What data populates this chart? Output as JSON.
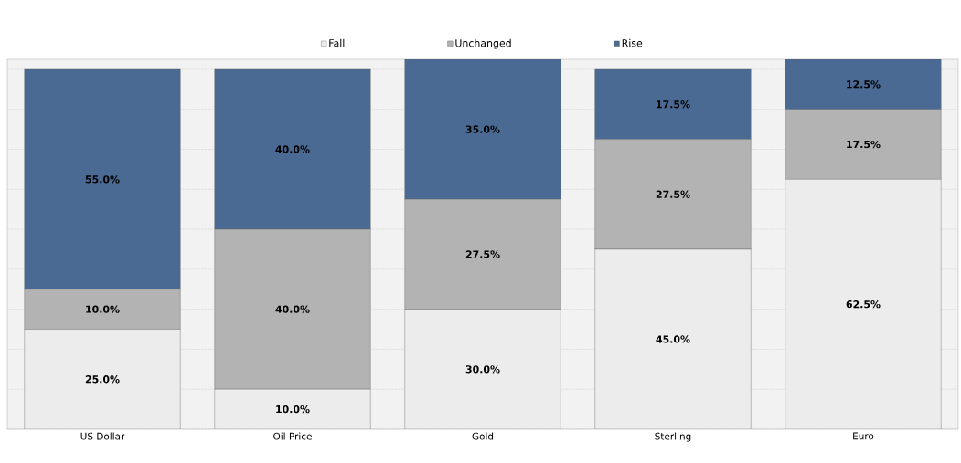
{
  "chart_data": {
    "type": "bar",
    "stacked": true,
    "legend": "top",
    "grid": "y",
    "categories": [
      "US Dollar",
      "Oil Price",
      "Gold",
      "Sterling",
      "Euro"
    ],
    "series": [
      {
        "name": "Fall",
        "color": "#ececec",
        "values": [
          25.0,
          10.0,
          30.0,
          45.0,
          62.5
        ],
        "value_labels": [
          "25.0%",
          "10.0%",
          "30.0%",
          "45.0%",
          "62.5%"
        ]
      },
      {
        "name": "Unchanged",
        "color": "#b3b3b3",
        "values": [
          10.0,
          40.0,
          27.5,
          27.5,
          17.5
        ],
        "value_labels": [
          "10.0%",
          "40.0%",
          "27.5%",
          "27.5%",
          "17.5%"
        ]
      },
      {
        "name": "Rise",
        "color": "#4a6a94",
        "values": [
          55.0,
          40.0,
          35.0,
          17.5,
          12.5
        ],
        "value_labels": [
          "55.0%",
          "40.0%",
          "35.0%",
          "17.5%",
          "12.5%"
        ]
      }
    ]
  }
}
